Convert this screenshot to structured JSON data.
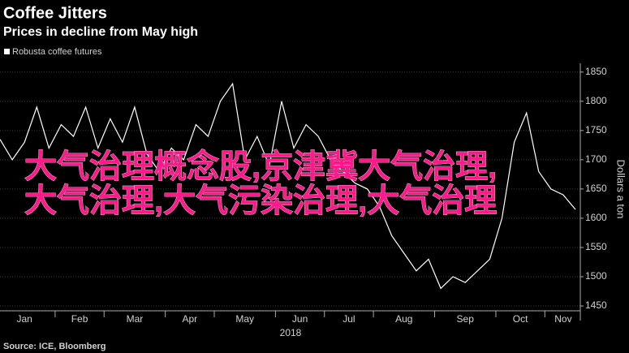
{
  "chart_data": {
    "type": "line",
    "title": "Coffee Jitters",
    "subtitle": "Prices in decline from May high",
    "series": [
      {
        "name": "Robusta coffee futures",
        "color": "#ffffff",
        "values": [
          1735,
          1700,
          1730,
          1790,
          1720,
          1760,
          1740,
          1790,
          1720,
          1770,
          1730,
          1790,
          1710,
          1680,
          1720,
          1700,
          1760,
          1740,
          1800,
          1830,
          1700,
          1740,
          1690,
          1800,
          1720,
          1760,
          1740,
          1700,
          1680,
          1660,
          1650,
          1620,
          1570,
          1540,
          1510,
          1530,
          1480,
          1500,
          1490,
          1510,
          1530,
          1600,
          1730,
          1780,
          1680,
          1650,
          1640,
          1615
        ]
      }
    ],
    "categories": [
      "Jan",
      null,
      null,
      null,
      null,
      "Feb",
      null,
      null,
      null,
      "Mar",
      null,
      null,
      null,
      null,
      "Apr",
      null,
      null,
      null,
      "May",
      null,
      null,
      null,
      null,
      "Jun",
      null,
      null,
      null,
      "Jul",
      null,
      null,
      null,
      "Aug",
      null,
      null,
      null,
      null,
      "Sep",
      null,
      null,
      null,
      null,
      "Oct",
      null,
      null,
      null,
      "Nov",
      null,
      null
    ],
    "x_label": "2018",
    "y_label": "Dollars a ton",
    "ylim": [
      1425,
      1865
    ],
    "yticks": [
      1450,
      1500,
      1550,
      1600,
      1650,
      1700,
      1750,
      1800,
      1850
    ],
    "grid": true,
    "source": "Source: ICE, Bloomberg",
    "annotation": [
      "大气治理概念股,京津冀大气治理,",
      "大气治理,大气污染治理,大气治理"
    ]
  }
}
